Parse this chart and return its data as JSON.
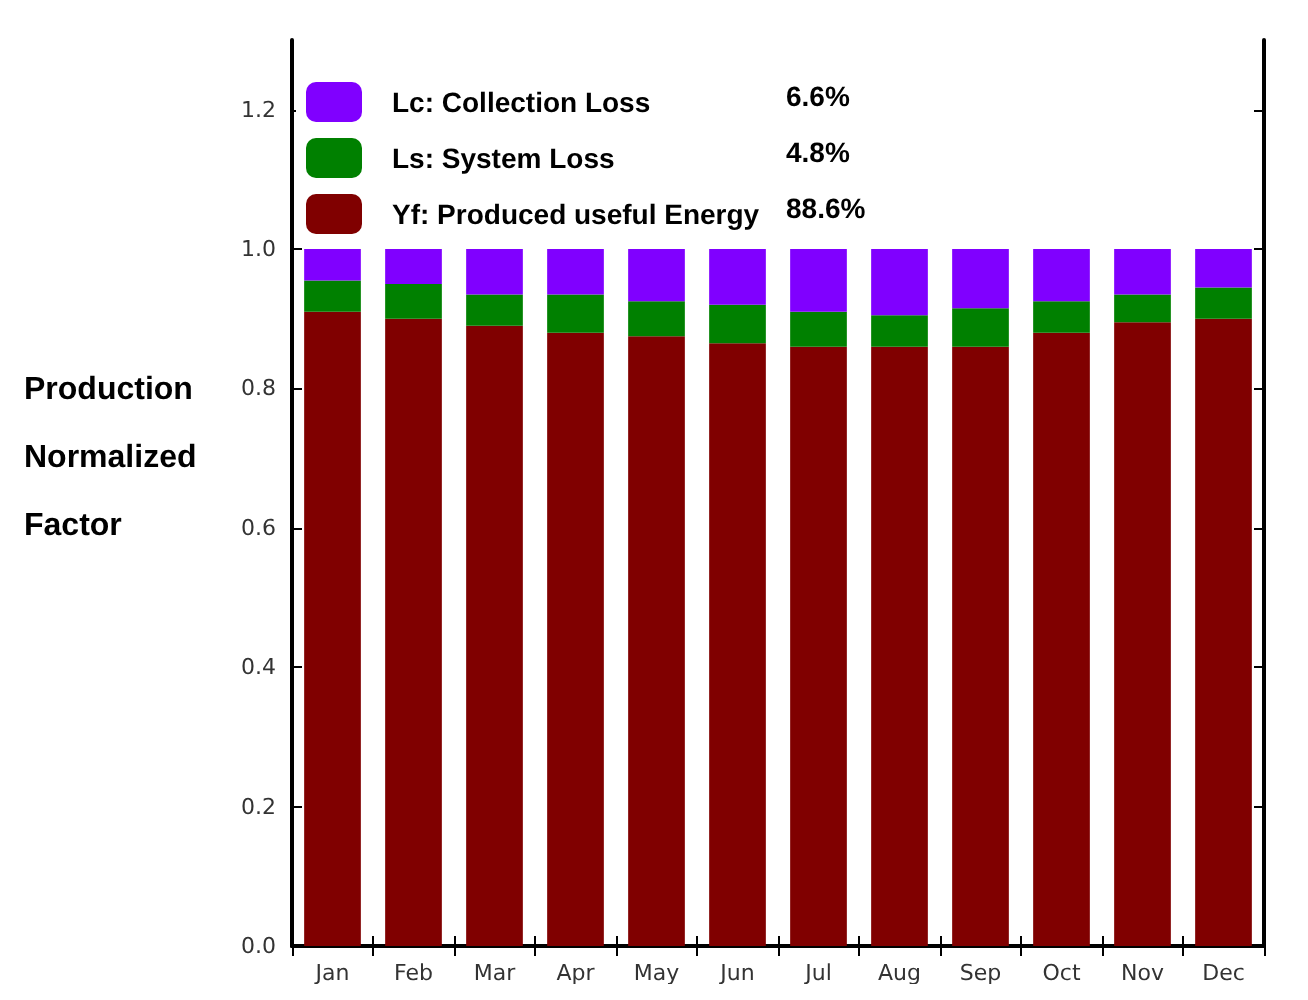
{
  "chart_data": {
    "type": "bar",
    "stacked": true,
    "ylabel": "Production Normalized Factor",
    "categories": [
      "Jan",
      "Feb",
      "Mar",
      "Apr",
      "May",
      "Jun",
      "Jul",
      "Aug",
      "Sep",
      "Oct",
      "Nov",
      "Dec"
    ],
    "series": [
      {
        "name": "Yf: Produced useful Energy",
        "color": "#800000",
        "values": [
          0.91,
          0.9,
          0.89,
          0.88,
          0.875,
          0.865,
          0.86,
          0.86,
          0.86,
          0.88,
          0.895,
          0.9
        ]
      },
      {
        "name": "Ls: System Loss",
        "color": "#008000",
        "values": [
          0.045,
          0.05,
          0.045,
          0.055,
          0.05,
          0.055,
          0.05,
          0.045,
          0.055,
          0.045,
          0.04,
          0.045
        ]
      },
      {
        "name": "Lc: Collection Loss",
        "color": "#8000ff",
        "values": [
          0.045,
          0.05,
          0.065,
          0.065,
          0.075,
          0.08,
          0.09,
          0.095,
          0.085,
          0.075,
          0.065,
          0.055
        ]
      }
    ],
    "annotations": [
      "88.6%",
      "4.8%",
      "6.6%"
    ],
    "ylim": [
      0,
      1.3
    ],
    "yticks": [
      {
        "value": 0,
        "label": "0.0"
      },
      {
        "value": 0.2,
        "label": "0.2"
      },
      {
        "value": 0.4,
        "label": "0.4"
      },
      {
        "value": 0.6,
        "label": "0.6"
      },
      {
        "value": 0.8,
        "label": "0.8"
      },
      {
        "value": 1,
        "label": "1.0"
      },
      {
        "value": 1.2,
        "label": "1.2"
      }
    ],
    "grid": false,
    "legend": "top left"
  }
}
